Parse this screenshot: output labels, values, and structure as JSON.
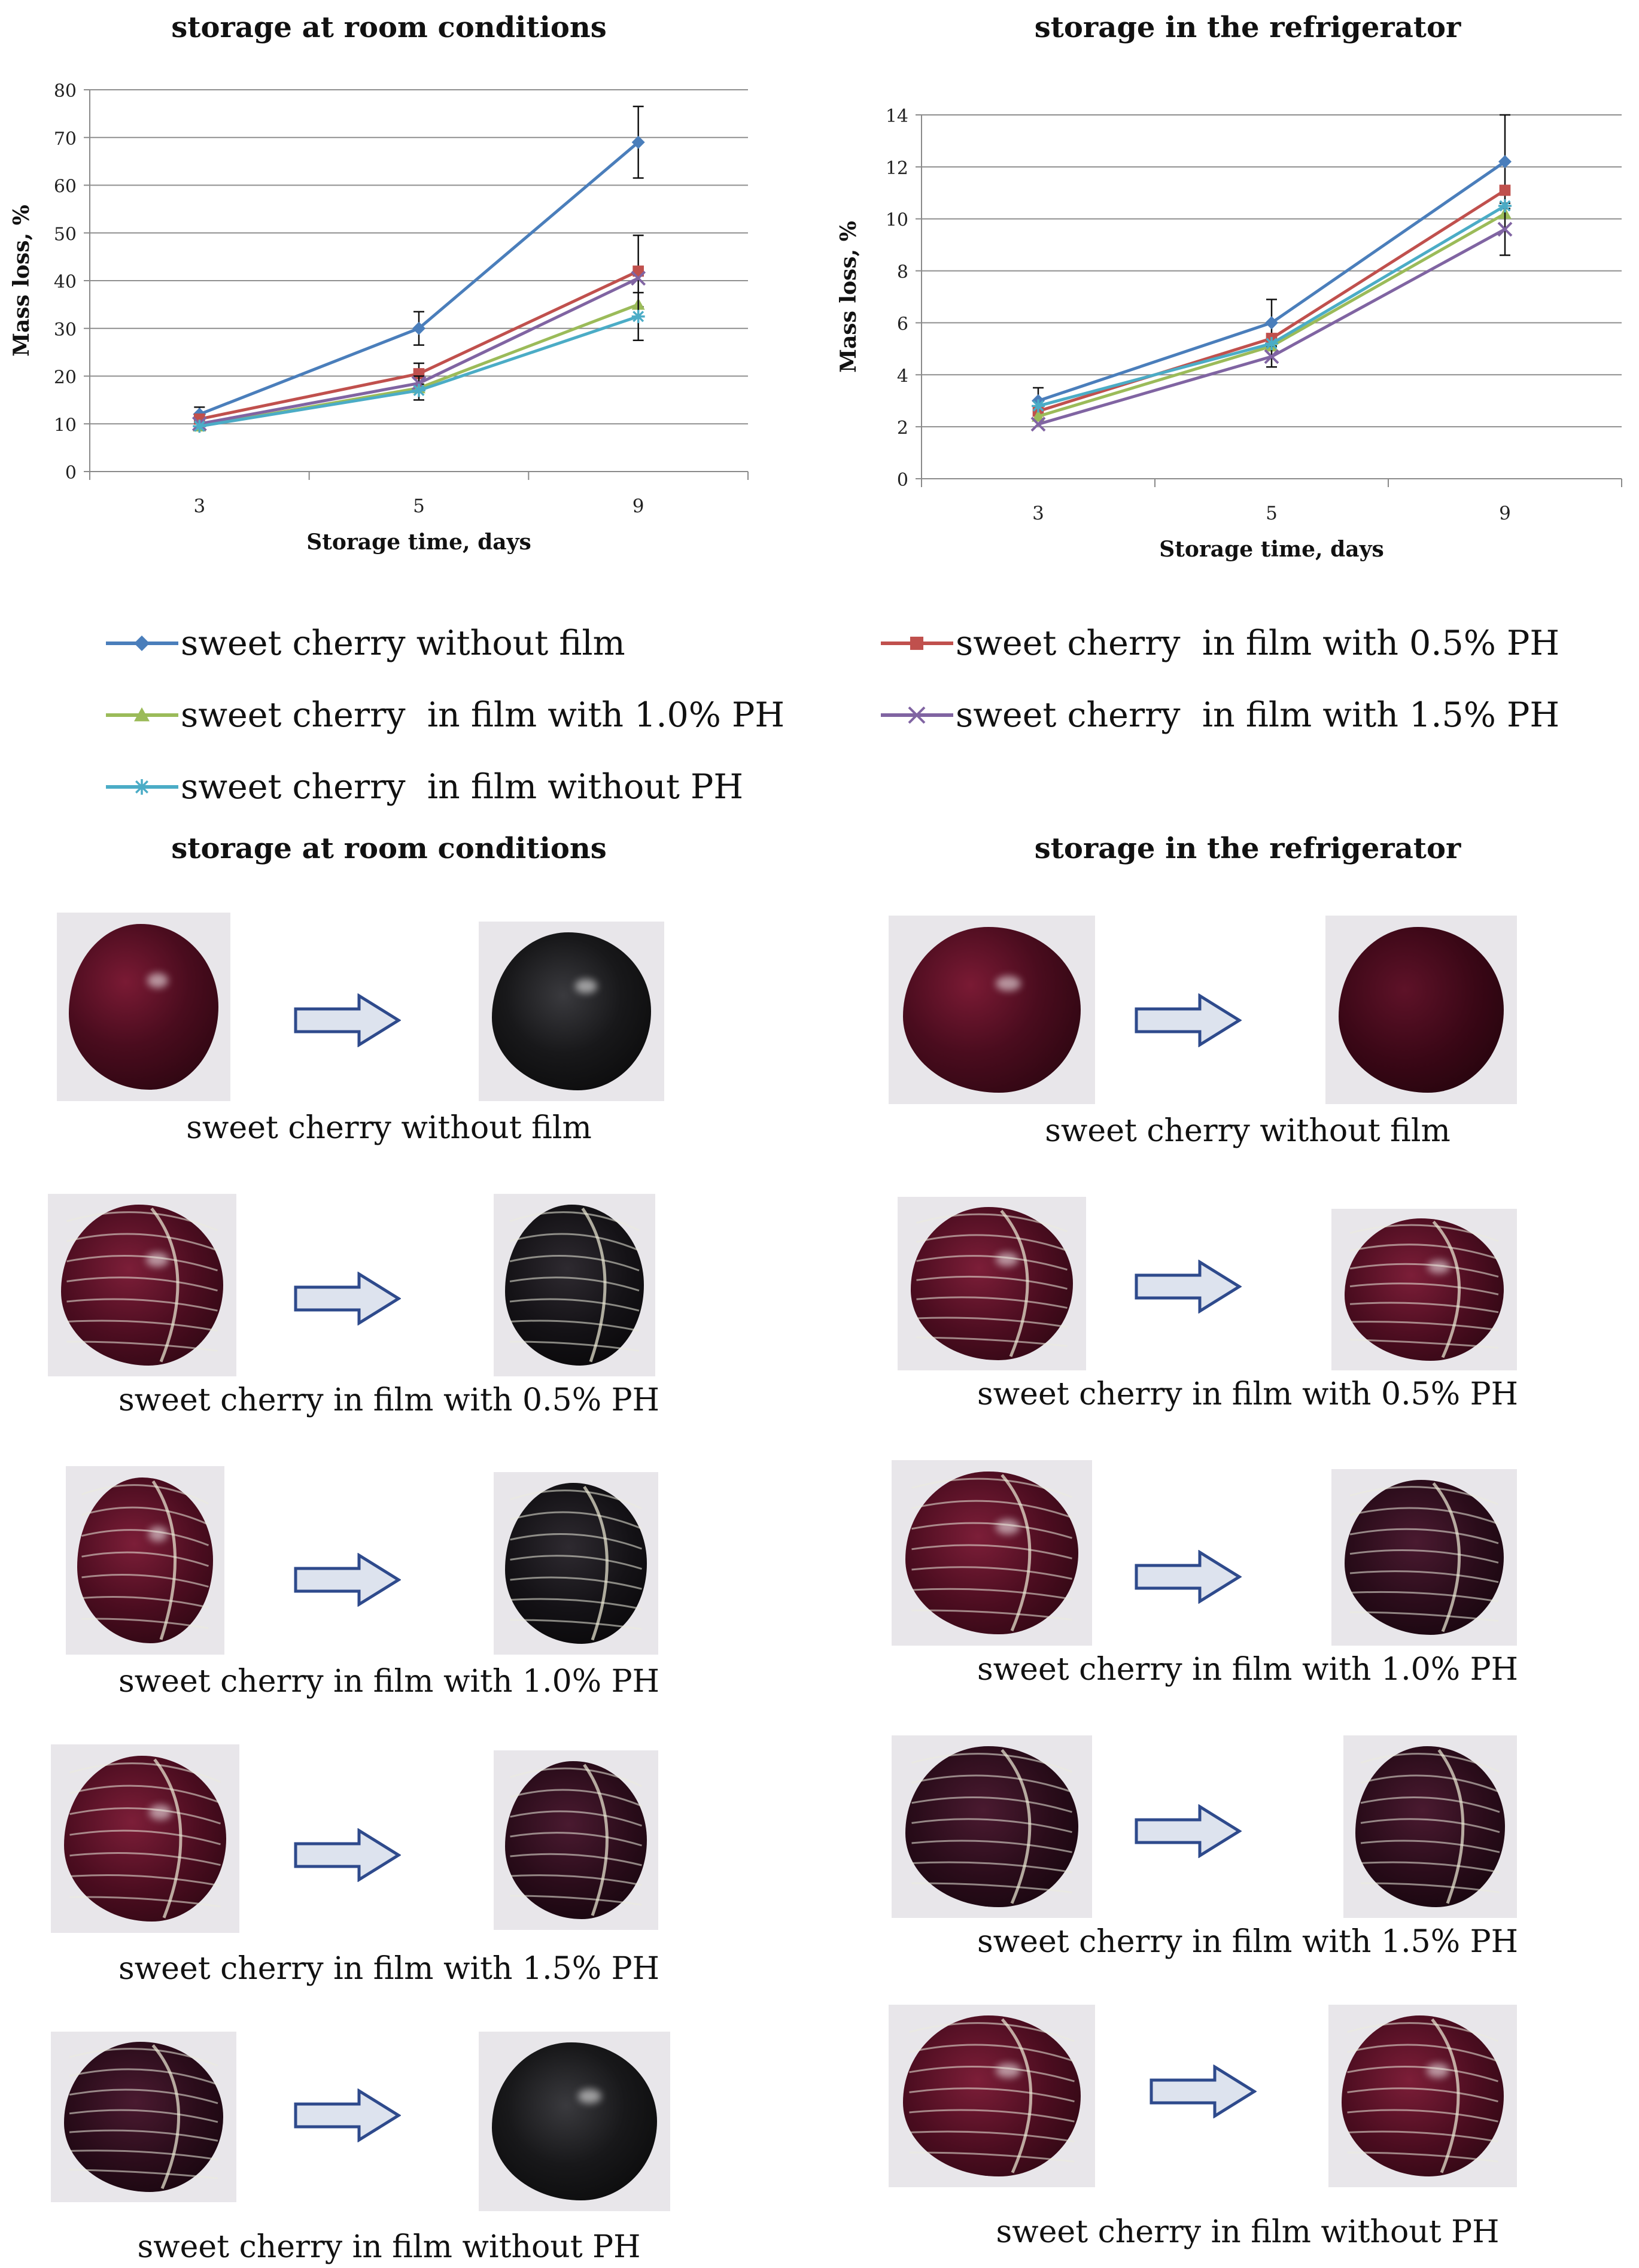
{
  "section_titles": {
    "chart_room": "storage at room conditions",
    "chart_fridge": "storage in the refrigerator",
    "photos_room": "storage at room conditions",
    "photos_fridge": "storage in the refrigerator"
  },
  "legend": [
    {
      "label": "sweet cherry without film",
      "color": "#4a7ebb",
      "marker": "diamond"
    },
    {
      "label": "sweet cherry  in film with 0.5% PH",
      "color": "#c0504d",
      "marker": "square"
    },
    {
      "label": "sweet cherry  in film with 1.0% PH",
      "color": "#9bbb59",
      "marker": "triangle"
    },
    {
      "label": "sweet cherry  in film with 1.5% PH",
      "color": "#8064a2",
      "marker": "x"
    },
    {
      "label": "sweet cherry  in film without PH",
      "color": "#4bacc6",
      "marker": "star"
    }
  ],
  "chart_data": [
    {
      "type": "line",
      "title": "storage at room conditions",
      "xlabel": "Storage time, days",
      "ylabel": "Mass loss, %",
      "categories": [
        "3",
        "5",
        "9"
      ],
      "ylim": [
        0,
        80
      ],
      "yticks": [
        "0",
        "10",
        "20",
        "30",
        "40",
        "50",
        "60",
        "70",
        "80"
      ],
      "grid": true,
      "series": [
        {
          "name": "sweet cherry without film",
          "values": [
            12,
            30,
            69
          ],
          "errors": [
            1.5,
            3.5,
            7.5
          ],
          "color": "#4a7ebb",
          "marker": "diamond"
        },
        {
          "name": "sweet cherry  in film with 0.5% PH",
          "values": [
            11,
            20.5,
            42
          ],
          "errors": [
            1,
            2.2,
            7.5
          ],
          "color": "#c0504d",
          "marker": "square"
        },
        {
          "name": "sweet cherry  in film with 1.0% PH",
          "values": [
            9.5,
            17.5,
            35
          ],
          "errors": [
            0,
            2.5,
            0
          ],
          "color": "#9bbb59",
          "marker": "triangle"
        },
        {
          "name": "sweet cherry  in film with 1.5% PH",
          "values": [
            10,
            18.5,
            40.5
          ],
          "errors": [
            0,
            0,
            0
          ],
          "color": "#8064a2",
          "marker": "x"
        },
        {
          "name": "sweet cherry  in film without PH",
          "values": [
            9.5,
            17,
            32.5
          ],
          "errors": [
            0,
            0,
            5
          ],
          "color": "#4bacc6",
          "marker": "star"
        }
      ]
    },
    {
      "type": "line",
      "title": "storage in the refrigerator",
      "xlabel": "Storage time, days",
      "ylabel": "Mass loss, %",
      "categories": [
        "3",
        "5",
        "9"
      ],
      "ylim": [
        0,
        14
      ],
      "yticks": [
        "0",
        "2",
        "4",
        "6",
        "8",
        "10",
        "12",
        "14"
      ],
      "grid": true,
      "series": [
        {
          "name": "sweet cherry without film",
          "values": [
            3.0,
            6.0,
            12.2
          ],
          "errors": [
            0.5,
            0.9,
            1.8
          ],
          "color": "#4a7ebb",
          "marker": "diamond"
        },
        {
          "name": "sweet cherry  in film with 0.5% PH",
          "values": [
            2.6,
            5.4,
            11.1
          ],
          "errors": [
            0,
            0,
            0
          ],
          "color": "#c0504d",
          "marker": "square"
        },
        {
          "name": "sweet cherry  in film with 1.0% PH",
          "values": [
            2.4,
            5.1,
            10.2
          ],
          "errors": [
            0,
            0,
            0
          ],
          "color": "#9bbb59",
          "marker": "triangle"
        },
        {
          "name": "sweet cherry  in film with 1.5% PH",
          "values": [
            2.1,
            4.7,
            9.6
          ],
          "errors": [
            0,
            0.4,
            1.0
          ],
          "color": "#8064a2",
          "marker": "x"
        },
        {
          "name": "sweet cherry  in film without PH",
          "values": [
            2.8,
            5.2,
            10.5
          ],
          "errors": [
            0,
            0,
            0
          ],
          "color": "#4bacc6",
          "marker": "star"
        }
      ]
    }
  ],
  "photos": {
    "room": [
      {
        "caption": "sweet cherry without film",
        "before": "fresh-glossy",
        "after": "dried-black"
      },
      {
        "caption": "sweet cherry in film with 0.5% PH",
        "before": "filmed-red",
        "after": "filmed-black"
      },
      {
        "caption": "sweet cherry in film with 1.0% PH",
        "before": "filmed-red",
        "after": "filmed-black"
      },
      {
        "caption": "sweet cherry in film with 1.5% PH",
        "before": "filmed-red",
        "after": "filmed-dark"
      },
      {
        "caption": "sweet cherry in film without PH",
        "before": "filmed-dark",
        "after": "dried-black"
      }
    ],
    "fridge": [
      {
        "caption": "sweet cherry without film",
        "before": "fresh-glossy",
        "after": "fresh-dark"
      },
      {
        "caption": "sweet cherry in film with 0.5% PH",
        "before": "filmed-red",
        "after": "filmed-red"
      },
      {
        "caption": "sweet cherry in film with 1.0% PH",
        "before": "filmed-red",
        "after": "filmed-dark"
      },
      {
        "caption": "sweet cherry in film with 1.5% PH",
        "before": "filmed-dark",
        "after": "filmed-dark"
      },
      {
        "caption": "sweet cherry in film without PH",
        "before": "filmed-red",
        "after": "filmed-red"
      }
    ]
  },
  "arrow_color": "#2e4a8c",
  "arrow_fill": "#dde3ee"
}
